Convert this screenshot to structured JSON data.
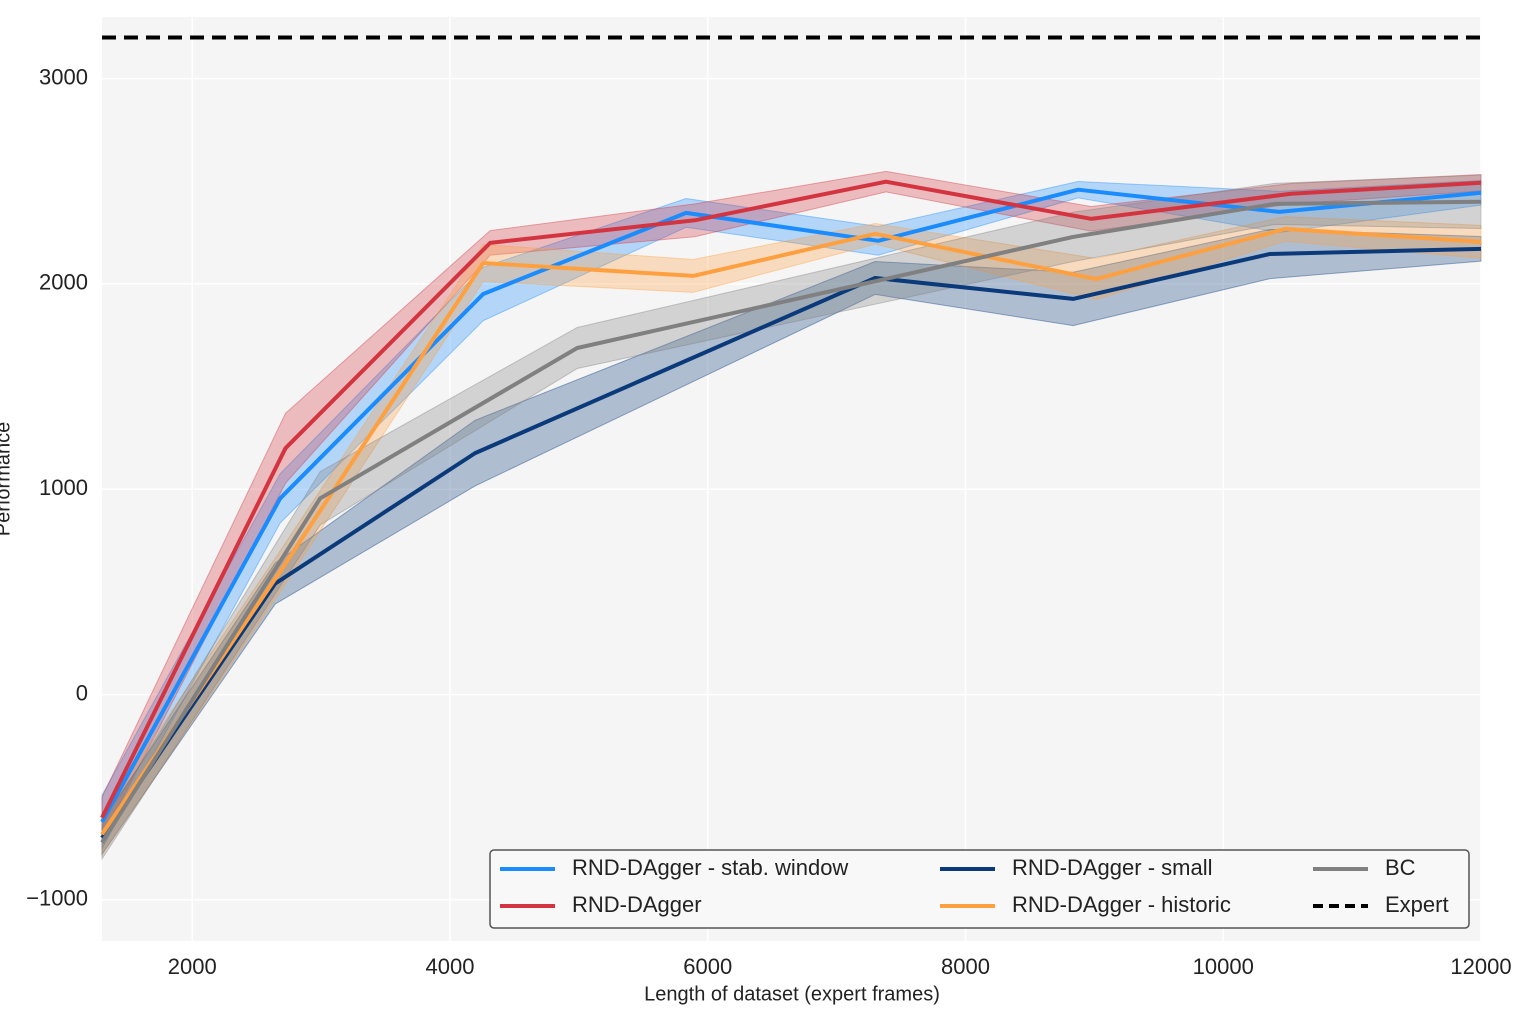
{
  "chart_data": {
    "type": "line",
    "xlabel": "Length of dataset (expert frames)",
    "ylabel": "Performance",
    "xlim": [
      1300,
      12000
    ],
    "ylim": [
      -1200,
      3300
    ],
    "xticks": [
      2000,
      4000,
      6000,
      8000,
      10000,
      12000
    ],
    "yticks": [
      {
        "value": -1000,
        "label": "−1000"
      },
      0,
      1000,
      2000,
      3000
    ],
    "grid": true,
    "legend": "lower right",
    "series": [
      {
        "name": "RND-DAgger - stab. window",
        "color": "#1a8cff",
        "x": [
          1300,
          2683,
          4258,
          5832,
          7322,
          8874,
          10433,
          12000
        ],
        "values": [
          -620,
          956,
          1951,
          2346,
          2210,
          2459,
          2351,
          2444
        ],
        "errors": [
          130,
          120,
          130,
          70,
          70,
          40,
          100,
          60
        ]
      },
      {
        "name": "RND-DAgger",
        "color": "#d3343f",
        "x": [
          1300,
          2724,
          4312,
          5900,
          7383,
          8974,
          10526,
          12000
        ],
        "values": [
          -600,
          1200,
          2200,
          2310,
          2498,
          2317,
          2439,
          2493
        ],
        "errors": [
          100,
          170,
          60,
          80,
          50,
          60,
          50,
          40
        ]
      },
      {
        "name": "RND-DAgger - small",
        "color": "#0b3a7a",
        "x": [
          1300,
          2644,
          4195,
          7299,
          8835,
          10363,
          12000
        ],
        "values": [
          -698,
          541,
          1176,
          2029,
          1927,
          2146,
          2171
        ],
        "errors": [
          80,
          100,
          160,
          80,
          130,
          120,
          60
        ]
      },
      {
        "name": "RND-DAgger - historic",
        "color": "#ffa040",
        "x": [
          1300,
          2683,
          4258,
          5887,
          7300,
          9013,
          10480,
          12000
        ],
        "values": [
          -680,
          600,
          2102,
          2039,
          2244,
          2024,
          2268,
          2205
        ],
        "errors": [
          100,
          100,
          90,
          80,
          50,
          100,
          60,
          80
        ]
      },
      {
        "name": "BC",
        "color": "#808080",
        "x": [
          1300,
          2993,
          4987,
          8835,
          10402,
          12000
        ],
        "values": [
          -720,
          956,
          1688,
          2229,
          2390,
          2400
        ],
        "errors": [
          80,
          130,
          100,
          120,
          100,
          130
        ]
      }
    ],
    "expert": {
      "name": "Expert",
      "color": "#000000",
      "value": 3200
    }
  }
}
